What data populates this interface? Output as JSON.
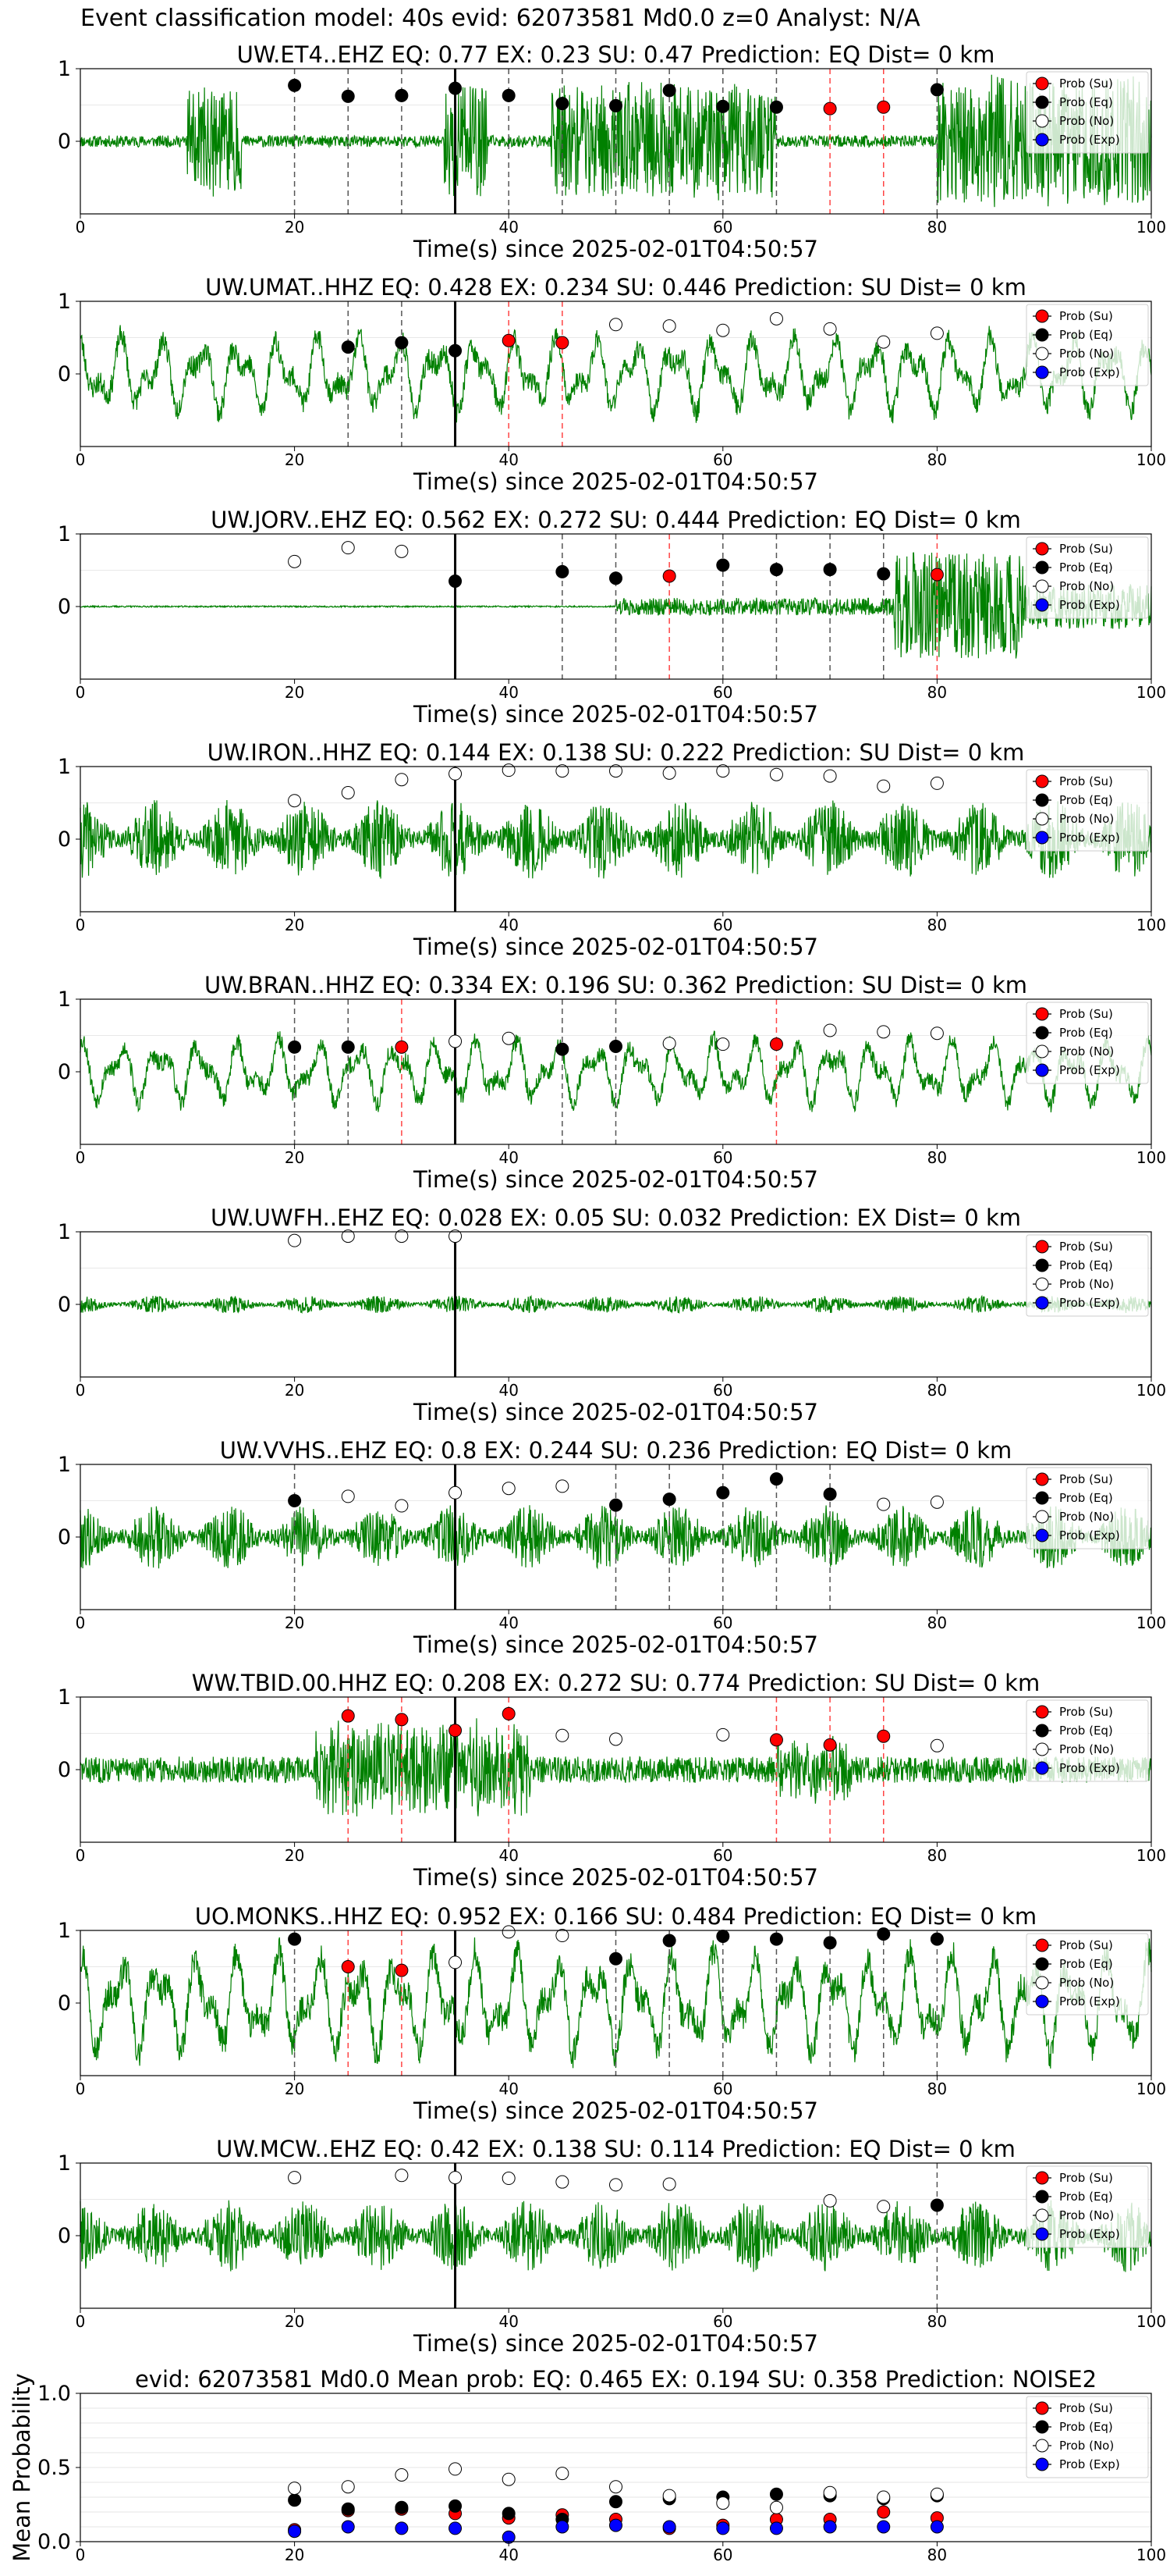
{
  "figure": {
    "title": "Event classification model: 40s evid: 62073581 Md0.0 z=0 Analyst: N/A"
  },
  "legend_labels": [
    "Prob (Su)",
    "Prob (Eq)",
    "Prob (No)",
    "Prob (Exp)"
  ],
  "colors": {
    "waveform": "#008000",
    "su": "#ff0000",
    "eq": "#000000",
    "no": "#ffffff",
    "exp": "#0000ff",
    "eq_line": "#555555",
    "su_line": "#ff4444",
    "origin_line": "#000000"
  },
  "chart_data": [
    {
      "type": "line",
      "title": "UW.ET4..EHZ   EQ: 0.77  EX: 0.23  SU: 0.47   Prediction: EQ    Dist= 0 km",
      "xlabel": "Time(s) since 2025-02-01T04:50:57",
      "ylabel": "",
      "xlim": [
        0,
        100
      ],
      "ylim": [
        -1,
        1
      ],
      "xticks": [
        0,
        20,
        40,
        60,
        80,
        100
      ],
      "yticks": [
        0,
        1
      ],
      "origin_line": 35,
      "waveform_style": "bursty",
      "bursts": [
        [
          10,
          15,
          0.7
        ],
        [
          34,
          38,
          0.8
        ],
        [
          44,
          65,
          0.75
        ],
        [
          80,
          100,
          0.85
        ]
      ],
      "base_amp": 0.08,
      "seed": 11,
      "series": [
        {
          "name": "Prob (Su)",
          "x": [
            70,
            75
          ],
          "y": [
            0.45,
            0.47
          ]
        },
        {
          "name": "Prob (Eq)",
          "x": [
            20,
            25,
            30,
            35,
            40,
            45,
            50,
            55,
            60,
            65,
            80
          ],
          "y": [
            0.77,
            0.62,
            0.63,
            0.73,
            0.63,
            0.52,
            0.49,
            0.7,
            0.48,
            0.47,
            0.71
          ]
        },
        {
          "name": "Prob (No)",
          "x": [],
          "y": []
        },
        {
          "name": "Prob (Exp)",
          "x": [],
          "y": []
        }
      ],
      "eq_lines": [
        20,
        25,
        30,
        40,
        45,
        50,
        55,
        60,
        65,
        80
      ],
      "su_lines": [
        70,
        75
      ]
    },
    {
      "type": "line",
      "title": "UW.UMAT..HHZ   EQ: 0.428  EX: 0.234  SU: 0.446   Prediction: SU    Dist= 0 km",
      "xlabel": "Time(s) since 2025-02-01T04:50:57",
      "ylabel": "",
      "xlim": [
        0,
        100
      ],
      "ylim": [
        -1,
        1
      ],
      "xticks": [
        0,
        20,
        40,
        60,
        80,
        100
      ],
      "yticks": [
        0,
        1
      ],
      "origin_line": 35,
      "waveform_style": "wavy",
      "bursts": [],
      "base_amp": 0.6,
      "seed": 23,
      "series": [
        {
          "name": "Prob (Su)",
          "x": [
            40,
            45
          ],
          "y": [
            0.46,
            0.43
          ]
        },
        {
          "name": "Prob (Eq)",
          "x": [
            25,
            30,
            35
          ],
          "y": [
            0.37,
            0.43,
            0.32
          ]
        },
        {
          "name": "Prob (No)",
          "x": [
            50,
            55,
            60,
            65,
            70,
            75,
            80
          ],
          "y": [
            0.68,
            0.66,
            0.6,
            0.76,
            0.62,
            0.44,
            0.56
          ]
        },
        {
          "name": "Prob (Exp)",
          "x": [],
          "y": []
        }
      ],
      "eq_lines": [
        25,
        30
      ],
      "su_lines": [
        40,
        45
      ]
    },
    {
      "type": "line",
      "title": "UW.JORV..EHZ   EQ: 0.562  EX: 0.272  SU: 0.444   Prediction: EQ    Dist= 0 km",
      "xlabel": "Time(s) since 2025-02-01T04:50:57",
      "ylabel": "",
      "xlim": [
        0,
        100
      ],
      "ylim": [
        -1,
        1
      ],
      "xticks": [
        0,
        20,
        40,
        60,
        80,
        100
      ],
      "yticks": [
        0,
        1
      ],
      "origin_line": 35,
      "waveform_style": "bursty",
      "bursts": [
        [
          50,
          76,
          0.12
        ],
        [
          76,
          88,
          0.75
        ],
        [
          88,
          100,
          0.3
        ]
      ],
      "base_amp": 0.01,
      "seed": 37,
      "series": [
        {
          "name": "Prob (Su)",
          "x": [
            55,
            80
          ],
          "y": [
            0.42,
            0.44
          ]
        },
        {
          "name": "Prob (Eq)",
          "x": [
            35,
            45,
            50,
            60,
            65,
            70,
            75
          ],
          "y": [
            0.35,
            0.48,
            0.39,
            0.57,
            0.51,
            0.51,
            0.45
          ]
        },
        {
          "name": "Prob (No)",
          "x": [
            20,
            25,
            30
          ],
          "y": [
            0.62,
            0.81,
            0.76
          ]
        },
        {
          "name": "Prob (Exp)",
          "x": [],
          "y": []
        }
      ],
      "eq_lines": [
        45,
        50,
        60,
        65,
        70,
        75
      ],
      "su_lines": [
        55,
        80
      ]
    },
    {
      "type": "line",
      "title": "UW.IRON..HHZ   EQ: 0.144  EX: 0.138  SU: 0.222   Prediction: SU    Dist= 0 km",
      "xlabel": "Time(s) since 2025-02-01T04:50:57",
      "ylabel": "",
      "xlim": [
        0,
        100
      ],
      "ylim": [
        -1,
        1
      ],
      "xticks": [
        0,
        20,
        40,
        60,
        80,
        100
      ],
      "yticks": [
        0,
        1
      ],
      "origin_line": 35,
      "waveform_style": "noisy",
      "bursts": [],
      "base_amp": 0.55,
      "seed": 41,
      "series": [
        {
          "name": "Prob (Su)",
          "x": [],
          "y": []
        },
        {
          "name": "Prob (Eq)",
          "x": [],
          "y": []
        },
        {
          "name": "Prob (No)",
          "x": [
            20,
            25,
            30,
            35,
            40,
            45,
            50,
            55,
            60,
            65,
            70,
            75,
            80
          ],
          "y": [
            0.53,
            0.64,
            0.82,
            0.9,
            0.95,
            0.94,
            0.94,
            0.91,
            0.94,
            0.89,
            0.87,
            0.73,
            0.77
          ]
        },
        {
          "name": "Prob (Exp)",
          "x": [],
          "y": []
        }
      ],
      "eq_lines": [],
      "su_lines": []
    },
    {
      "type": "line",
      "title": "UW.BRAN..HHZ   EQ: 0.334  EX: 0.196  SU: 0.362   Prediction: SU    Dist= 0 km",
      "xlabel": "Time(s) since 2025-02-01T04:50:57",
      "ylabel": "",
      "xlim": [
        0,
        100
      ],
      "ylim": [
        -1,
        1
      ],
      "xticks": [
        0,
        20,
        40,
        60,
        80,
        100
      ],
      "yticks": [
        0,
        1
      ],
      "origin_line": 35,
      "waveform_style": "wavy",
      "bursts": [],
      "base_amp": 0.5,
      "seed": 53,
      "series": [
        {
          "name": "Prob (Su)",
          "x": [
            30,
            65
          ],
          "y": [
            0.34,
            0.38
          ]
        },
        {
          "name": "Prob (Eq)",
          "x": [
            20,
            25,
            45,
            50
          ],
          "y": [
            0.34,
            0.34,
            0.31,
            0.35
          ]
        },
        {
          "name": "Prob (No)",
          "x": [
            35,
            40,
            55,
            60,
            70,
            75,
            80
          ],
          "y": [
            0.42,
            0.46,
            0.39,
            0.38,
            0.57,
            0.55,
            0.53
          ]
        },
        {
          "name": "Prob (Exp)",
          "x": [],
          "y": []
        }
      ],
      "eq_lines": [
        20,
        25,
        45,
        50
      ],
      "su_lines": [
        30,
        65
      ]
    },
    {
      "type": "line",
      "title": "UW.UWFH..EHZ   EQ: 0.028  EX: 0.05  SU: 0.032   Prediction: EX    Dist= 0 km",
      "xlabel": "Time(s) since 2025-02-01T04:50:57",
      "ylabel": "",
      "xlim": [
        0,
        100
      ],
      "ylim": [
        -1,
        1
      ],
      "xticks": [
        0,
        20,
        40,
        60,
        80,
        100
      ],
      "yticks": [
        0,
        1
      ],
      "origin_line": 35,
      "waveform_style": "noisy",
      "bursts": [],
      "base_amp": 0.12,
      "seed": 67,
      "series": [
        {
          "name": "Prob (Su)",
          "x": [],
          "y": []
        },
        {
          "name": "Prob (Eq)",
          "x": [],
          "y": []
        },
        {
          "name": "Prob (No)",
          "x": [
            20,
            25,
            30,
            35
          ],
          "y": [
            0.88,
            0.94,
            0.94,
            0.94
          ]
        },
        {
          "name": "Prob (Exp)",
          "x": [],
          "y": []
        }
      ],
      "eq_lines": [],
      "su_lines": []
    },
    {
      "type": "line",
      "title": "UW.VVHS..EHZ   EQ: 0.8  EX: 0.244  SU: 0.236   Prediction: EQ    Dist= 0 km",
      "xlabel": "Time(s) since 2025-02-01T04:50:57",
      "ylabel": "",
      "xlim": [
        0,
        100
      ],
      "ylim": [
        -1,
        1
      ],
      "xticks": [
        0,
        20,
        40,
        60,
        80,
        100
      ],
      "yticks": [
        0,
        1
      ],
      "origin_line": 35,
      "waveform_style": "noisy",
      "bursts": [],
      "base_amp": 0.45,
      "seed": 79,
      "series": [
        {
          "name": "Prob (Su)",
          "x": [],
          "y": []
        },
        {
          "name": "Prob (Eq)",
          "x": [
            20,
            50,
            55,
            60,
            65,
            70
          ],
          "y": [
            0.5,
            0.44,
            0.52,
            0.61,
            0.8,
            0.59
          ]
        },
        {
          "name": "Prob (No)",
          "x": [
            25,
            30,
            35,
            40,
            45,
            75,
            80
          ],
          "y": [
            0.56,
            0.43,
            0.61,
            0.67,
            0.7,
            0.45,
            0.48
          ]
        },
        {
          "name": "Prob (Exp)",
          "x": [],
          "y": []
        }
      ],
      "eq_lines": [
        20,
        50,
        55,
        60,
        65,
        70
      ],
      "su_lines": []
    },
    {
      "type": "line",
      "title": "WW.TBID.00.HHZ   EQ: 0.208  EX: 0.272  SU: 0.774   Prediction: SU    Dist= 0 km",
      "xlabel": "Time(s) since 2025-02-01T04:50:57",
      "ylabel": "",
      "xlim": [
        0,
        100
      ],
      "ylim": [
        -1,
        1
      ],
      "xticks": [
        0,
        20,
        40,
        60,
        80,
        100
      ],
      "yticks": [
        0,
        1
      ],
      "origin_line": 35,
      "waveform_style": "bursty",
      "bursts": [
        [
          22,
          42,
          0.55
        ],
        [
          65,
          72,
          0.35
        ]
      ],
      "base_amp": 0.18,
      "seed": 83,
      "series": [
        {
          "name": "Prob (Su)",
          "x": [
            25,
            30,
            35,
            40,
            65,
            70,
            75
          ],
          "y": [
            0.74,
            0.69,
            0.54,
            0.77,
            0.41,
            0.34,
            0.46
          ]
        },
        {
          "name": "Prob (Eq)",
          "x": [],
          "y": []
        },
        {
          "name": "Prob (No)",
          "x": [
            45,
            50,
            60,
            80
          ],
          "y": [
            0.47,
            0.42,
            0.48,
            0.33
          ]
        },
        {
          "name": "Prob (Exp)",
          "x": [],
          "y": []
        }
      ],
      "eq_lines": [],
      "su_lines": [
        25,
        30,
        40,
        65,
        70,
        75
      ]
    },
    {
      "type": "line",
      "title": "UO.MONKS..HHZ   EQ: 0.952  EX: 0.166  SU: 0.484   Prediction: EQ    Dist= 0 km",
      "xlabel": "Time(s) since 2025-02-01T04:50:57",
      "ylabel": "",
      "xlim": [
        0,
        100
      ],
      "ylim": [
        -1,
        1
      ],
      "xticks": [
        0,
        20,
        40,
        60,
        80,
        100
      ],
      "yticks": [
        0,
        1
      ],
      "origin_line": 35,
      "waveform_style": "wavy",
      "bursts": [],
      "base_amp": 0.8,
      "seed": 97,
      "series": [
        {
          "name": "Prob (Su)",
          "x": [
            25,
            30
          ],
          "y": [
            0.5,
            0.45
          ]
        },
        {
          "name": "Prob (Eq)",
          "x": [
            20,
            50,
            55,
            60,
            65,
            70,
            75,
            80
          ],
          "y": [
            0.88,
            0.61,
            0.86,
            0.92,
            0.88,
            0.83,
            0.95,
            0.88
          ]
        },
        {
          "name": "Prob (No)",
          "x": [
            35,
            40,
            45
          ],
          "y": [
            0.56,
            0.98,
            0.93
          ]
        },
        {
          "name": "Prob (Exp)",
          "x": [],
          "y": []
        }
      ],
      "eq_lines": [
        20,
        50,
        55,
        60,
        65,
        70,
        75,
        80
      ],
      "su_lines": [
        25,
        30
      ]
    },
    {
      "type": "line",
      "title": "UW.MCW..EHZ   EQ: 0.42  EX: 0.138  SU: 0.114   Prediction: EQ    Dist= 0 km",
      "xlabel": "Time(s) since 2025-02-01T04:50:57",
      "ylabel": "",
      "xlim": [
        0,
        100
      ],
      "ylim": [
        -1,
        1
      ],
      "xticks": [
        0,
        20,
        40,
        60,
        80,
        100
      ],
      "yticks": [
        0,
        1
      ],
      "origin_line": 35,
      "waveform_style": "noisy",
      "bursts": [],
      "base_amp": 0.5,
      "seed": 101,
      "series": [
        {
          "name": "Prob (Su)",
          "x": [],
          "y": []
        },
        {
          "name": "Prob (Eq)",
          "x": [
            80
          ],
          "y": [
            0.42
          ]
        },
        {
          "name": "Prob (No)",
          "x": [
            20,
            30,
            35,
            40,
            45,
            50,
            55,
            70,
            75
          ],
          "y": [
            0.8,
            0.83,
            0.8,
            0.79,
            0.74,
            0.7,
            0.71,
            0.48,
            0.4
          ]
        },
        {
          "name": "Prob (Exp)",
          "x": [],
          "y": []
        }
      ],
      "eq_lines": [
        80
      ],
      "su_lines": []
    },
    {
      "type": "scatter",
      "title": "evid: 62073581  Md0.0   Mean prob:   EQ: 0.465  EX: 0.194  SU: 0.358   Prediction: NOISE2",
      "xlabel": "",
      "ylabel": "Mean Probability",
      "xlim": [
        0,
        100
      ],
      "ylim": [
        0,
        1
      ],
      "xticks": [
        0,
        20,
        40,
        60,
        80,
        100
      ],
      "yticks": [
        0.0,
        0.5,
        1.0
      ],
      "grid": true,
      "series": [
        {
          "name": "Prob (Su)",
          "x": [
            20,
            25,
            30,
            35,
            40,
            45,
            50,
            55,
            60,
            65,
            70,
            75,
            80
          ],
          "y": [
            0.08,
            0.21,
            0.22,
            0.19,
            0.16,
            0.18,
            0.15,
            0.09,
            0.11,
            0.15,
            0.15,
            0.2,
            0.16
          ]
        },
        {
          "name": "Prob (Eq)",
          "x": [
            20,
            25,
            30,
            35,
            40,
            45,
            50,
            55,
            60,
            65,
            70,
            75,
            80
          ],
          "y": [
            0.28,
            0.22,
            0.23,
            0.24,
            0.19,
            0.15,
            0.27,
            0.29,
            0.3,
            0.32,
            0.31,
            0.29,
            0.31
          ]
        },
        {
          "name": "Prob (No)",
          "x": [
            20,
            25,
            30,
            35,
            40,
            45,
            50,
            55,
            60,
            65,
            70,
            75,
            80
          ],
          "y": [
            0.36,
            0.37,
            0.45,
            0.49,
            0.42,
            0.46,
            0.37,
            0.31,
            0.26,
            0.23,
            0.33,
            0.3,
            0.32
          ]
        },
        {
          "name": "Prob (Exp)",
          "x": [
            20,
            25,
            30,
            35,
            40,
            45,
            50,
            55,
            60,
            65,
            70,
            75,
            80
          ],
          "y": [
            0.07,
            0.1,
            0.09,
            0.09,
            0.03,
            0.1,
            0.11,
            0.1,
            0.09,
            0.09,
            0.1,
            0.1,
            0.1
          ]
        }
      ]
    }
  ]
}
